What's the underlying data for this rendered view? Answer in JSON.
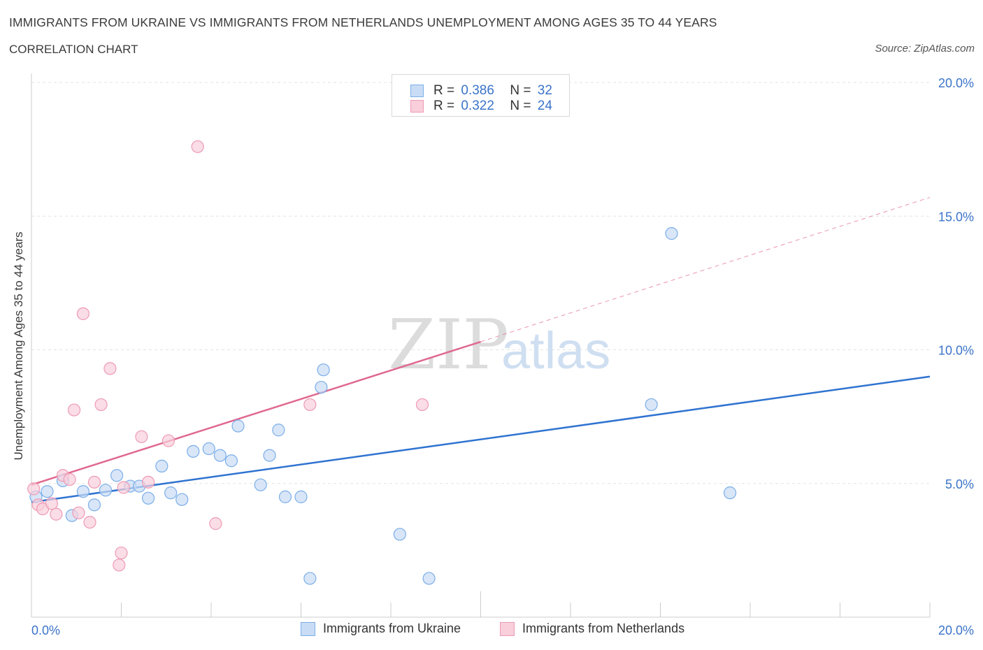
{
  "title": "IMMIGRANTS FROM UKRAINE VS IMMIGRANTS FROM NETHERLANDS UNEMPLOYMENT AMONG AGES 35 TO 44 YEARS",
  "subtitle": "CORRELATION CHART",
  "source": "Source: ZipAtlas.com",
  "watermark": {
    "zip": "ZIP",
    "atlas": "atlas"
  },
  "legend": {
    "r_label": "R =",
    "n_label": "N =",
    "rows": [
      {
        "series": "ukraine",
        "r": "0.386",
        "n": "32"
      },
      {
        "series": "netherlands",
        "r": "0.322",
        "n": "24"
      }
    ]
  },
  "chart_data": {
    "type": "scatter",
    "title": "IMMIGRANTS FROM UKRAINE VS IMMIGRANTS FROM NETHERLANDS UNEMPLOYMENT AMONG AGES 35 TO 44 YEARS",
    "xlabel": "",
    "ylabel": "Unemployment Among Ages 35 to 44 years",
    "xlim": [
      0,
      20
    ],
    "ylim": [
      0,
      20
    ],
    "x_tick_labels": [
      "0.0%",
      "20.0%"
    ],
    "y_tick_values": [
      5,
      10,
      15,
      20
    ],
    "y_tick_labels": [
      "5.0%",
      "10.0%",
      "15.0%",
      "20.0%"
    ],
    "grid": true,
    "series": [
      {
        "name": "Immigrants from Ukraine",
        "color": "#7aaee8",
        "fill": "#c9dcf5",
        "line_color": "#2f73d0",
        "trendline": {
          "x": [
            0,
            20
          ],
          "y": [
            4.3,
            9.0
          ],
          "dashed_extension": false
        },
        "points": [
          [
            0.1,
            4.5
          ],
          [
            0.35,
            4.7
          ],
          [
            0.7,
            5.1
          ],
          [
            0.9,
            3.8
          ],
          [
            1.15,
            4.7
          ],
          [
            1.4,
            4.2
          ],
          [
            1.65,
            4.75
          ],
          [
            1.9,
            5.3
          ],
          [
            2.2,
            4.9
          ],
          [
            2.4,
            4.9
          ],
          [
            2.6,
            4.45
          ],
          [
            2.9,
            5.65
          ],
          [
            3.1,
            4.65
          ],
          [
            3.35,
            4.4
          ],
          [
            3.6,
            6.2
          ],
          [
            3.95,
            6.3
          ],
          [
            4.2,
            6.05
          ],
          [
            4.45,
            5.85
          ],
          [
            4.6,
            7.15
          ],
          [
            5.1,
            4.95
          ],
          [
            5.3,
            6.05
          ],
          [
            5.5,
            7.0
          ],
          [
            5.65,
            4.5
          ],
          [
            6.0,
            4.5
          ],
          [
            6.2,
            1.45
          ],
          [
            6.45,
            8.6
          ],
          [
            6.5,
            9.25
          ],
          [
            8.2,
            3.1
          ],
          [
            8.85,
            1.45
          ],
          [
            13.8,
            7.95
          ],
          [
            14.25,
            14.35
          ],
          [
            15.55,
            4.65
          ]
        ]
      },
      {
        "name": "Immigrants from Netherlands",
        "color": "#ee9ab4",
        "fill": "#f8cfdb",
        "line_color": "#e0698f",
        "trendline": {
          "x": [
            0,
            10.0
          ],
          "y": [
            4.95,
            10.3
          ],
          "dashed_extension_to": [
            20,
            15.7
          ]
        },
        "points": [
          [
            0.05,
            4.8
          ],
          [
            0.15,
            4.2
          ],
          [
            0.25,
            4.05
          ],
          [
            0.45,
            4.25
          ],
          [
            0.55,
            3.85
          ],
          [
            0.7,
            5.3
          ],
          [
            0.85,
            5.15
          ],
          [
            0.95,
            7.75
          ],
          [
            1.05,
            3.9
          ],
          [
            1.15,
            11.35
          ],
          [
            1.3,
            3.55
          ],
          [
            1.4,
            5.05
          ],
          [
            1.55,
            7.95
          ],
          [
            1.75,
            9.3
          ],
          [
            1.95,
            1.95
          ],
          [
            2.0,
            2.4
          ],
          [
            2.05,
            4.85
          ],
          [
            2.45,
            6.75
          ],
          [
            2.6,
            5.05
          ],
          [
            3.05,
            6.6
          ],
          [
            3.7,
            17.6
          ],
          [
            4.1,
            3.5
          ],
          [
            6.2,
            7.95
          ],
          [
            8.7,
            7.95
          ]
        ]
      }
    ]
  },
  "bottom_legend": [
    "Immigrants from Ukraine",
    "Immigrants from Netherlands"
  ],
  "colors": {
    "accent_blue": "#3b74c9",
    "grid": "#e3e3e3",
    "axis": "#cccccc"
  }
}
